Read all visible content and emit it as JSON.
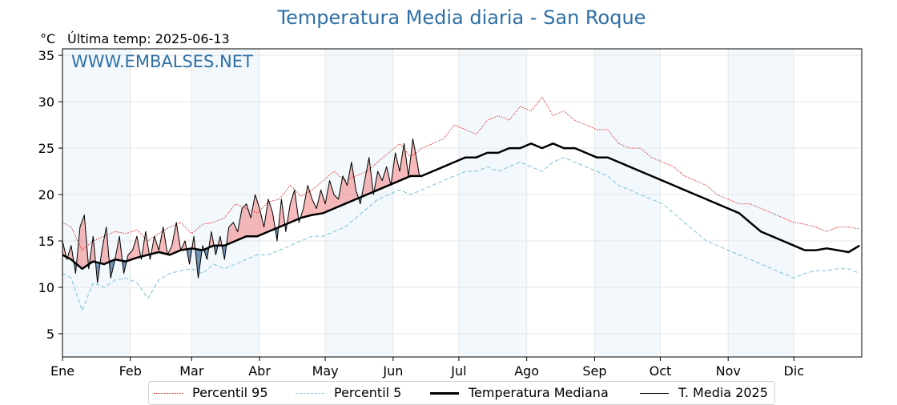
{
  "chart_data": {
    "type": "line",
    "title": "Temperatura Media diaria - San Roque",
    "unit_label": "°C",
    "subtitle": "Última temp: 2025-06-13",
    "watermark": "WWW.EMBALSES.NET",
    "ylim": [
      2.5,
      35.7
    ],
    "yticks": [
      5,
      10,
      15,
      20,
      25,
      30,
      35
    ],
    "month_labels": [
      "Ene",
      "Feb",
      "Mar",
      "Abr",
      "May",
      "Jun",
      "Jul",
      "Ago",
      "Sep",
      "Oct",
      "Nov",
      "Dic"
    ],
    "month_start_day": [
      1,
      32,
      60,
      91,
      121,
      152,
      182,
      213,
      244,
      274,
      305,
      335
    ],
    "shaded_months": [
      "Ene",
      "Mar",
      "May",
      "Jul",
      "Sep",
      "Nov"
    ],
    "series": [
      {
        "name": "Percentil 95",
        "color": "#e02020",
        "style": "dotted",
        "x": [
          1,
          5,
          10,
          15,
          20,
          25,
          30,
          35,
          40,
          45,
          50,
          55,
          60,
          65,
          70,
          75,
          80,
          85,
          90,
          95,
          100,
          105,
          110,
          115,
          120,
          125,
          130,
          135,
          140,
          145,
          150,
          155,
          160,
          165,
          170,
          175,
          180,
          185,
          190,
          195,
          200,
          205,
          210,
          215,
          220,
          225,
          230,
          235,
          240,
          245,
          250,
          255,
          260,
          265,
          270,
          275,
          280,
          285,
          290,
          295,
          300,
          305,
          310,
          315,
          320,
          325,
          330,
          335,
          340,
          345,
          350,
          355,
          360,
          365
        ],
        "values": [
          17.0,
          16.5,
          14.0,
          15.0,
          15.5,
          16.0,
          15.8,
          16.2,
          15.0,
          15.8,
          16.5,
          17.0,
          15.8,
          16.8,
          17.0,
          17.5,
          19.0,
          18.5,
          18.0,
          19.2,
          19.5,
          21.0,
          19.8,
          20.5,
          21.5,
          22.5,
          21.5,
          22.0,
          22.5,
          23.5,
          24.5,
          25.5,
          24.0,
          25.0,
          25.5,
          26.0,
          27.5,
          27.0,
          26.5,
          28.0,
          28.5,
          28.0,
          29.5,
          29.0,
          30.5,
          28.5,
          29.0,
          28.0,
          27.5,
          27.0,
          27.0,
          25.5,
          25.0,
          25.0,
          24.0,
          23.5,
          23.0,
          22.0,
          21.5,
          21.0,
          20.0,
          19.5,
          19.0,
          19.0,
          18.5,
          18.0,
          17.5,
          17.0,
          16.8,
          16.5,
          16.0,
          16.5,
          16.5,
          16.3
        ]
      },
      {
        "name": "Percentil 5",
        "color": "#8fc9de",
        "style": "dashed",
        "x": [
          1,
          5,
          10,
          15,
          20,
          25,
          30,
          35,
          40,
          45,
          50,
          55,
          60,
          65,
          70,
          75,
          80,
          85,
          90,
          95,
          100,
          105,
          110,
          115,
          120,
          125,
          130,
          135,
          140,
          145,
          150,
          155,
          160,
          165,
          170,
          175,
          180,
          185,
          190,
          195,
          200,
          205,
          210,
          215,
          220,
          225,
          230,
          235,
          240,
          245,
          250,
          255,
          260,
          265,
          270,
          275,
          280,
          285,
          290,
          295,
          300,
          305,
          310,
          315,
          320,
          325,
          330,
          335,
          340,
          345,
          350,
          355,
          360,
          365
        ],
        "values": [
          11.5,
          11.0,
          7.5,
          10.5,
          10.0,
          10.8,
          11.0,
          10.5,
          8.8,
          10.8,
          11.5,
          11.8,
          12.0,
          11.5,
          12.5,
          12.0,
          12.5,
          13.0,
          13.5,
          13.5,
          14.0,
          14.5,
          15.0,
          15.5,
          15.5,
          16.0,
          16.5,
          17.5,
          18.5,
          19.5,
          20.0,
          20.5,
          20.0,
          20.5,
          21.0,
          21.5,
          22.0,
          22.5,
          22.5,
          23.0,
          22.5,
          23.0,
          23.5,
          23.0,
          22.5,
          23.5,
          24.0,
          23.5,
          23.0,
          22.5,
          22.0,
          21.0,
          20.5,
          20.0,
          19.5,
          19.0,
          18.0,
          17.0,
          16.0,
          15.0,
          14.5,
          14.0,
          13.5,
          13.0,
          12.5,
          12.0,
          11.5,
          11.0,
          11.5,
          11.8,
          11.8,
          12.0,
          12.0,
          11.5
        ]
      },
      {
        "name": "Temperatura Mediana",
        "color": "#000000",
        "style": "thick",
        "x": [
          1,
          5,
          10,
          15,
          20,
          25,
          30,
          35,
          40,
          45,
          50,
          55,
          60,
          65,
          70,
          75,
          80,
          85,
          90,
          95,
          100,
          105,
          110,
          115,
          120,
          125,
          130,
          135,
          140,
          145,
          150,
          155,
          160,
          165,
          170,
          175,
          180,
          185,
          190,
          195,
          200,
          205,
          210,
          215,
          220,
          225,
          230,
          235,
          240,
          245,
          250,
          255,
          260,
          265,
          270,
          275,
          280,
          285,
          290,
          295,
          300,
          305,
          310,
          315,
          320,
          325,
          330,
          335,
          340,
          345,
          350,
          355,
          360,
          365
        ],
        "values": [
          13.5,
          13.0,
          12.0,
          12.8,
          12.5,
          13.0,
          12.8,
          13.2,
          13.5,
          13.8,
          13.5,
          14.0,
          14.2,
          14.0,
          14.5,
          14.5,
          15.0,
          15.5,
          15.5,
          16.0,
          16.5,
          17.0,
          17.5,
          17.8,
          18.0,
          18.5,
          19.0,
          19.5,
          20.0,
          20.5,
          21.0,
          21.5,
          22.0,
          22.0,
          22.5,
          23.0,
          23.5,
          24.0,
          24.0,
          24.5,
          24.5,
          25.0,
          25.0,
          25.5,
          25.0,
          25.5,
          25.0,
          25.0,
          24.5,
          24.0,
          24.0,
          23.5,
          23.0,
          22.5,
          22.0,
          21.5,
          21.0,
          20.5,
          20.0,
          19.5,
          19.0,
          18.5,
          18.0,
          17.0,
          16.0,
          15.5,
          15.0,
          14.5,
          14.0,
          14.0,
          14.2,
          14.0,
          13.8,
          14.5
        ]
      },
      {
        "name": "T. Media 2025",
        "color": "#000000",
        "style": "thin",
        "x": [
          1,
          3,
          5,
          7,
          9,
          11,
          13,
          15,
          17,
          19,
          21,
          23,
          25,
          27,
          29,
          31,
          33,
          35,
          37,
          39,
          41,
          43,
          45,
          47,
          49,
          51,
          53,
          55,
          57,
          59,
          61,
          63,
          65,
          67,
          69,
          71,
          73,
          75,
          77,
          79,
          81,
          83,
          85,
          87,
          89,
          91,
          93,
          95,
          97,
          99,
          101,
          103,
          105,
          107,
          109,
          111,
          113,
          115,
          117,
          119,
          121,
          123,
          125,
          127,
          129,
          131,
          133,
          135,
          137,
          139,
          141,
          143,
          145,
          147,
          149,
          151,
          153,
          155,
          157,
          159,
          161,
          163,
          164
        ],
        "values": [
          15.0,
          13.0,
          14.5,
          11.5,
          16.5,
          17.8,
          12.0,
          15.5,
          10.5,
          14.0,
          16.5,
          11.0,
          13.0,
          15.5,
          11.5,
          13.5,
          14.0,
          15.5,
          13.0,
          16.0,
          13.0,
          15.5,
          14.0,
          16.5,
          13.5,
          14.5,
          17.0,
          14.0,
          15.0,
          12.5,
          15.5,
          11.0,
          14.5,
          13.0,
          16.0,
          13.5,
          15.5,
          13.0,
          16.5,
          17.0,
          16.0,
          18.5,
          19.0,
          17.5,
          20.0,
          18.5,
          16.5,
          19.5,
          18.0,
          15.0,
          19.5,
          16.0,
          19.0,
          20.5,
          17.0,
          18.5,
          21.0,
          19.5,
          18.5,
          20.5,
          19.0,
          21.5,
          20.0,
          19.5,
          22.0,
          21.0,
          23.5,
          20.5,
          19.0,
          21.5,
          24.0,
          20.0,
          22.5,
          21.5,
          23.0,
          21.0,
          24.5,
          22.5,
          25.5,
          22.0,
          26.0,
          23.5,
          22.0
        ]
      }
    ]
  }
}
